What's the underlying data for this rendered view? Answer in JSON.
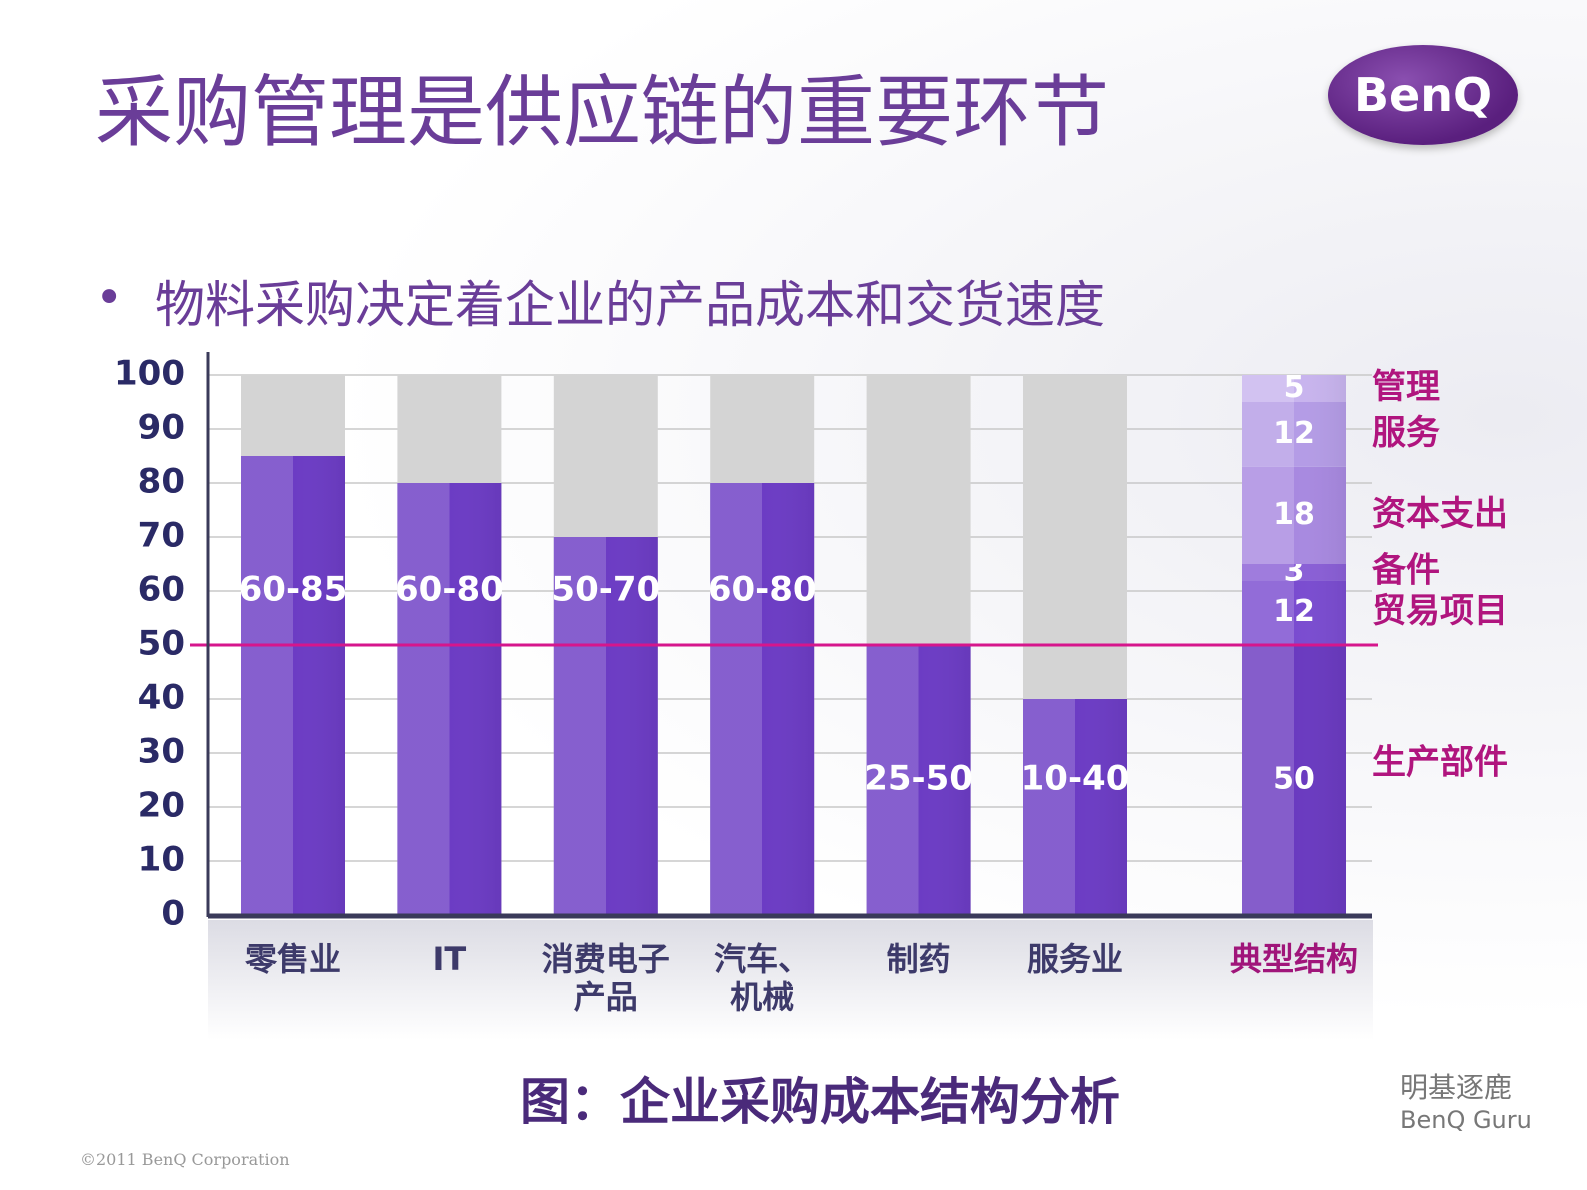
{
  "header": {
    "title": "采购管理是供应链的重要环节",
    "logo": "BenQ"
  },
  "bullet": "物料采购决定着企业的产品成本和交货速度",
  "chart_data": {
    "type": "bar",
    "categories": [
      "零售业",
      "IT",
      "消费电子\n产品",
      "汽车、\n机械",
      "制药",
      "服务业"
    ],
    "values": [
      [
        60,
        85
      ],
      [
        60,
        80
      ],
      [
        50,
        70
      ],
      [
        60,
        80
      ],
      [
        25,
        50
      ],
      [
        10,
        40
      ]
    ],
    "value_labels": [
      "60-85",
      "60-80",
      "50-70",
      "60-80",
      "25-50",
      "10-40"
    ],
    "color": "#6c3cc4",
    "background_color": "#d4d4d4",
    "stacked": {
      "category": "典型结构",
      "series": [
        {
          "name": "生产部件",
          "color": "#6a3ac0",
          "values": [
            50
          ]
        },
        {
          "name": "贸易项目",
          "color": "#7a4cd0",
          "values": [
            12
          ]
        },
        {
          "name": "备件",
          "color": "#8a5fd6",
          "values": [
            3
          ]
        },
        {
          "name": "资本支出",
          "color": "#a889e0",
          "values": [
            18
          ]
        },
        {
          "name": "服务",
          "color": "#b49ce6",
          "values": [
            12
          ]
        },
        {
          "name": "管理",
          "color": "#c8b4ee",
          "values": [
            5
          ]
        }
      ]
    },
    "reference_line": 50,
    "reference_color": "#d6168c",
    "ylim": [
      0,
      100
    ],
    "yticks": [
      0,
      10,
      20,
      30,
      40,
      50,
      60,
      70,
      80,
      90,
      100
    ],
    "grid": true
  },
  "caption": "图：企业采购成本结构分析",
  "brand": {
    "chinese": "明基逐鹿",
    "english": "BenQ Guru"
  },
  "footer": "©2011 BenQ Corporation"
}
